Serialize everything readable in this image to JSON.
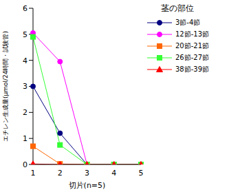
{
  "chart_data": {
    "type": "line",
    "x_label": "切片(n=5)",
    "y_label": "エチレン生成量(μmol/24時間・試験管)",
    "legend_title": "茎の部位",
    "categories": [
      "1",
      "2",
      "3",
      "4",
      "5"
    ],
    "ylim": [
      0,
      6
    ],
    "yticks": [
      0,
      1,
      2,
      3,
      4,
      5,
      6
    ],
    "grid": false,
    "legend": "right",
    "series": [
      {
        "name": "3節-4節",
        "color": "#000080",
        "marker": "circle",
        "line_style": "solid",
        "values": [
          3.0,
          1.2,
          0,
          0,
          0
        ]
      },
      {
        "name": "12節-13節",
        "color": "#ff00ff",
        "marker": "circle",
        "line_style": "solid",
        "values": [
          5.05,
          3.95,
          0,
          0,
          0
        ]
      },
      {
        "name": "20節-21節",
        "color": "#ff6600",
        "marker": "square",
        "line_style": "solid",
        "values": [
          0.7,
          0.02,
          0,
          0,
          0
        ]
      },
      {
        "name": "26節-27節",
        "color": "#33ff33",
        "marker": "square",
        "line_style": "solid",
        "values": [
          4.9,
          0.75,
          0,
          0,
          0
        ]
      },
      {
        "name": "38節-39節",
        "color": "#ff0000",
        "marker": "triangle",
        "line_style": "solid",
        "values": [
          0.02,
          0,
          0,
          0,
          0
        ]
      }
    ]
  }
}
